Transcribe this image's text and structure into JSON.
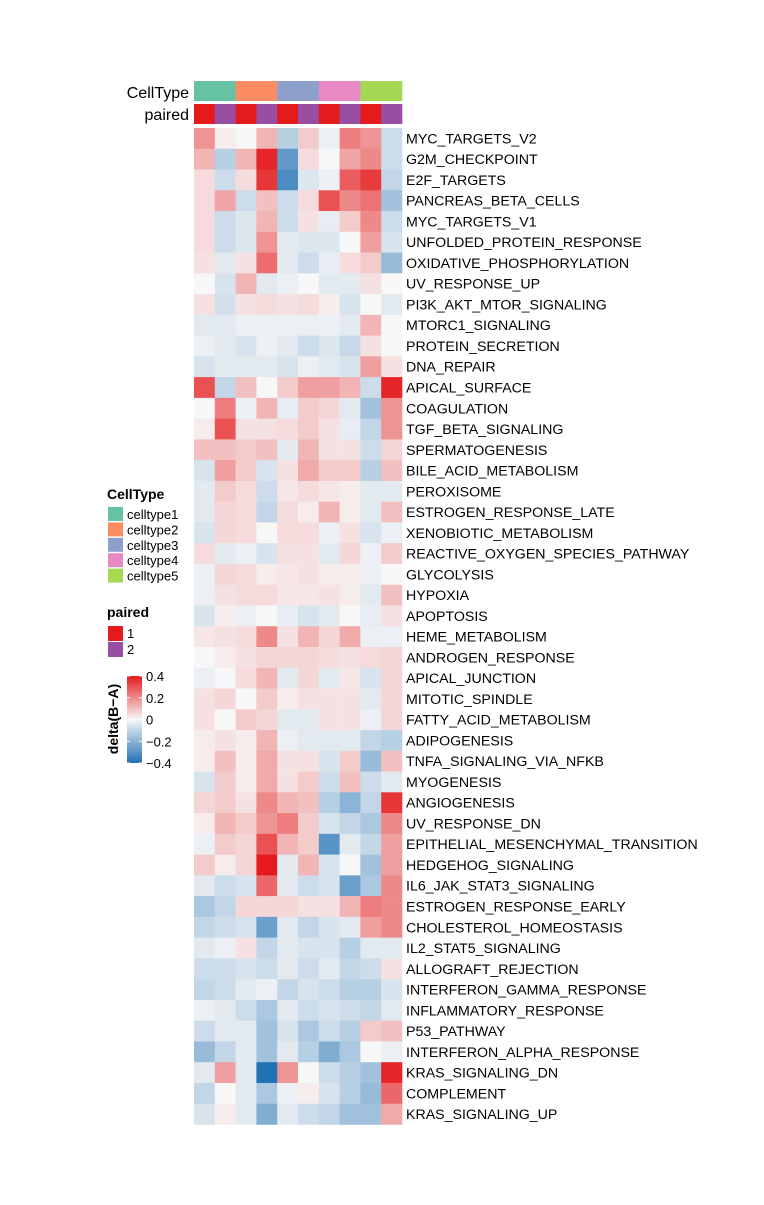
{
  "chart_data": {
    "type": "heatmap",
    "annotation_tracks": [
      {
        "name": "CellType",
        "values": [
          "celltype1",
          "celltype1",
          "celltype2",
          "celltype2",
          "celltype3",
          "celltype3",
          "celltype4",
          "celltype4",
          "celltype5",
          "celltype5"
        ]
      },
      {
        "name": "paired",
        "values": [
          "1",
          "2",
          "1",
          "2",
          "1",
          "2",
          "1",
          "2",
          "1",
          "2"
        ]
      }
    ],
    "rows": [
      "MYC_TARGETS_V2",
      "G2M_CHECKPOINT",
      "E2F_TARGETS",
      "PANCREAS_BETA_CELLS",
      "MYC_TARGETS_V1",
      "UNFOLDED_PROTEIN_RESPONSE",
      "OXIDATIVE_PHOSPHORYLATION",
      "UV_RESPONSE_UP",
      "PI3K_AKT_MTOR_SIGNALING",
      "MTORC1_SIGNALING",
      "PROTEIN_SECRETION",
      "DNA_REPAIR",
      "APICAL_SURFACE",
      "COAGULATION",
      "TGF_BETA_SIGNALING",
      "SPERMATOGENESIS",
      "BILE_ACID_METABOLISM",
      "PEROXISOME",
      "ESTROGEN_RESPONSE_LATE",
      "XENOBIOTIC_METABOLISM",
      "REACTIVE_OXYGEN_SPECIES_PATHWAY",
      "GLYCOLYSIS",
      "HYPOXIA",
      "APOPTOSIS",
      "HEME_METABOLISM",
      "ANDROGEN_RESPONSE",
      "APICAL_JUNCTION",
      "MITOTIC_SPINDLE",
      "FATTY_ACID_METABOLISM",
      "ADIPOGENESIS",
      "TNFA_SIGNALING_VIA_NFKB",
      "MYOGENESIS",
      "ANGIOGENESIS",
      "UV_RESPONSE_DN",
      "EPITHELIAL_MESENCHYMAL_TRANSITION",
      "HEDGEHOG_SIGNALING",
      "IL6_JAK_STAT3_SIGNALING",
      "ESTROGEN_RESPONSE_EARLY",
      "CHOLESTEROL_HOMEOSTASIS",
      "IL2_STAT5_SIGNALING",
      "ALLOGRAFT_REJECTION",
      "INTERFERON_GAMMA_RESPONSE",
      "INFLAMMATORY_RESPONSE",
      "P53_PATHWAY",
      "INTERFERON_ALPHA_RESPONSE",
      "KRAS_SIGNALING_DN",
      "COMPLEMENT",
      "KRAS_SIGNALING_UP"
    ],
    "values": [
      [
        0.18,
        0.02,
        0.0,
        0.12,
        -0.12,
        0.08,
        -0.02,
        0.22,
        0.18,
        -0.08
      ],
      [
        0.12,
        -0.12,
        0.12,
        0.38,
        -0.28,
        0.05,
        0.0,
        0.15,
        0.2,
        -0.08
      ],
      [
        0.05,
        -0.08,
        0.05,
        0.35,
        -0.32,
        -0.05,
        -0.02,
        0.28,
        0.34,
        -0.1
      ],
      [
        0.05,
        0.15,
        -0.08,
        0.1,
        -0.08,
        0.05,
        0.3,
        0.2,
        0.24,
        -0.16
      ],
      [
        0.05,
        -0.08,
        -0.05,
        0.12,
        -0.08,
        0.04,
        -0.03,
        0.08,
        0.2,
        -0.08
      ],
      [
        0.05,
        -0.08,
        -0.05,
        0.18,
        -0.04,
        -0.05,
        -0.05,
        0.0,
        0.16,
        -0.06
      ],
      [
        0.04,
        -0.04,
        0.04,
        0.25,
        -0.04,
        -0.08,
        -0.03,
        0.05,
        0.08,
        -0.18
      ],
      [
        0.0,
        -0.06,
        0.12,
        -0.04,
        -0.02,
        0.0,
        -0.04,
        -0.04,
        0.04,
        0.0
      ],
      [
        0.04,
        -0.07,
        0.04,
        0.05,
        0.04,
        0.05,
        0.02,
        -0.06,
        0.0,
        -0.04
      ],
      [
        -0.04,
        -0.04,
        -0.02,
        -0.02,
        -0.02,
        -0.02,
        -0.02,
        -0.04,
        0.12,
        0.0
      ],
      [
        -0.02,
        -0.04,
        -0.06,
        -0.02,
        -0.04,
        -0.08,
        -0.05,
        -0.09,
        0.04,
        0.0
      ],
      [
        -0.06,
        -0.04,
        -0.04,
        -0.04,
        -0.06,
        -0.02,
        -0.04,
        -0.06,
        0.16,
        0.04
      ],
      [
        0.3,
        -0.1,
        0.1,
        0.0,
        0.08,
        0.16,
        0.16,
        0.12,
        -0.08,
        0.38
      ],
      [
        0.0,
        0.22,
        -0.02,
        0.12,
        -0.03,
        0.08,
        0.06,
        -0.04,
        -0.16,
        0.18
      ],
      [
        0.02,
        0.3,
        0.04,
        0.04,
        0.05,
        0.08,
        0.04,
        -0.03,
        -0.1,
        0.18
      ],
      [
        0.1,
        0.1,
        0.08,
        0.1,
        -0.04,
        0.12,
        0.04,
        0.04,
        -0.08,
        0.06
      ],
      [
        -0.06,
        0.16,
        0.08,
        -0.06,
        0.04,
        0.14,
        0.08,
        0.08,
        -0.12,
        0.1
      ],
      [
        -0.04,
        0.08,
        0.05,
        -0.08,
        0.03,
        0.05,
        0.03,
        0.02,
        -0.04,
        -0.04
      ],
      [
        -0.04,
        0.06,
        0.05,
        -0.1,
        0.05,
        0.02,
        0.12,
        0.02,
        -0.04,
        0.1
      ],
      [
        -0.06,
        0.06,
        0.05,
        0.0,
        0.05,
        0.05,
        -0.02,
        0.04,
        -0.06,
        -0.02
      ],
      [
        0.05,
        -0.04,
        -0.02,
        -0.06,
        0.04,
        0.04,
        -0.04,
        0.06,
        -0.02,
        0.08
      ],
      [
        -0.02,
        0.06,
        0.05,
        0.02,
        0.03,
        0.04,
        0.02,
        0.02,
        -0.02,
        0.0
      ],
      [
        -0.02,
        0.04,
        0.05,
        0.05,
        0.03,
        0.03,
        0.04,
        0.02,
        -0.04,
        0.1
      ],
      [
        -0.06,
        0.02,
        -0.02,
        0.0,
        -0.03,
        -0.06,
        -0.04,
        0.0,
        -0.03,
        0.04
      ],
      [
        0.03,
        0.04,
        0.05,
        0.2,
        0.04,
        0.12,
        0.06,
        0.14,
        -0.02,
        -0.02
      ],
      [
        0.0,
        0.02,
        0.04,
        0.06,
        0.06,
        0.06,
        0.05,
        0.04,
        0.05,
        0.06
      ],
      [
        -0.02,
        0.0,
        0.05,
        0.12,
        -0.04,
        0.06,
        -0.04,
        0.03,
        -0.06,
        0.06
      ],
      [
        0.04,
        0.06,
        0.0,
        0.08,
        0.02,
        0.04,
        0.04,
        0.04,
        -0.04,
        0.06
      ],
      [
        0.04,
        0.0,
        0.08,
        0.06,
        -0.04,
        -0.04,
        0.04,
        0.04,
        -0.02,
        0.06
      ],
      [
        0.02,
        0.04,
        0.02,
        0.12,
        -0.02,
        -0.04,
        -0.04,
        -0.04,
        -0.1,
        -0.12
      ],
      [
        0.02,
        0.1,
        0.02,
        0.14,
        0.04,
        0.04,
        -0.06,
        0.08,
        -0.18,
        0.1
      ],
      [
        -0.06,
        0.08,
        0.02,
        0.14,
        0.04,
        0.08,
        -0.08,
        0.1,
        -0.08,
        -0.04
      ],
      [
        0.06,
        0.08,
        0.04,
        0.2,
        0.12,
        0.1,
        -0.12,
        -0.2,
        -0.1,
        0.35
      ],
      [
        0.02,
        0.12,
        0.08,
        0.18,
        0.22,
        0.08,
        -0.06,
        -0.1,
        -0.14,
        0.2
      ],
      [
        -0.02,
        0.08,
        0.06,
        0.3,
        0.12,
        0.08,
        -0.3,
        -0.04,
        -0.1,
        0.16
      ],
      [
        0.08,
        0.02,
        0.06,
        0.4,
        -0.04,
        0.12,
        -0.06,
        0.0,
        -0.16,
        0.16
      ],
      [
        -0.04,
        -0.08,
        -0.06,
        0.26,
        -0.04,
        -0.08,
        -0.06,
        -0.26,
        -0.14,
        0.2
      ],
      [
        -0.14,
        -0.1,
        0.06,
        0.06,
        0.06,
        0.04,
        0.04,
        0.12,
        0.22,
        0.2
      ],
      [
        -0.1,
        -0.08,
        -0.06,
        -0.26,
        -0.04,
        -0.1,
        -0.06,
        -0.04,
        0.16,
        0.2
      ],
      [
        -0.04,
        -0.02,
        0.04,
        -0.1,
        -0.04,
        -0.06,
        -0.06,
        -0.12,
        -0.04,
        -0.04
      ],
      [
        -0.08,
        -0.08,
        -0.06,
        -0.08,
        -0.04,
        -0.08,
        -0.04,
        -0.1,
        -0.08,
        0.04
      ],
      [
        -0.1,
        -0.08,
        -0.04,
        -0.02,
        -0.1,
        -0.06,
        -0.08,
        -0.12,
        -0.12,
        -0.06
      ],
      [
        -0.02,
        -0.04,
        -0.08,
        -0.14,
        -0.04,
        -0.08,
        -0.06,
        -0.08,
        -0.1,
        -0.04
      ],
      [
        -0.08,
        -0.04,
        -0.04,
        -0.16,
        -0.06,
        -0.14,
        -0.08,
        -0.12,
        0.08,
        0.1
      ],
      [
        -0.18,
        -0.1,
        -0.04,
        -0.16,
        -0.04,
        -0.12,
        -0.22,
        -0.14,
        0.0,
        -0.02
      ],
      [
        -0.04,
        0.16,
        -0.04,
        -0.42,
        0.18,
        0.0,
        -0.08,
        -0.12,
        -0.16,
        0.38
      ],
      [
        -0.1,
        0.0,
        -0.04,
        -0.14,
        -0.02,
        0.02,
        -0.06,
        -0.12,
        -0.18,
        0.26
      ],
      [
        -0.06,
        0.02,
        -0.04,
        -0.22,
        -0.04,
        -0.08,
        -0.1,
        -0.16,
        -0.16,
        0.14
      ]
    ],
    "celltype_colors": {
      "celltype1": "#66C2A5",
      "celltype2": "#FC8D62",
      "celltype3": "#8DA0CB",
      "celltype4": "#E78AC3",
      "celltype5": "#A6D854"
    },
    "paired_colors": {
      "1": "#E41A1C",
      "2": "#984EA3"
    },
    "colorscale": {
      "low": "#2171B5",
      "mid": "#F7F7F7",
      "high": "#E41A1C",
      "range": [
        -0.4,
        0.4
      ]
    },
    "legend": {
      "celltype_title": "CellType",
      "celltype_labels": [
        "celltype1",
        "celltype2",
        "celltype3",
        "celltype4",
        "celltype5"
      ],
      "paired_title": "paired",
      "paired_labels": [
        "1",
        "2"
      ],
      "scale_title": "delta(B−A)",
      "scale_ticks": [
        "0.4",
        "0.2",
        "0",
        "−0.2",
        "−0.4"
      ],
      "scale_tick_values": [
        0.4,
        0.2,
        0,
        -0.2,
        -0.4
      ],
      "placement": "left"
    }
  }
}
